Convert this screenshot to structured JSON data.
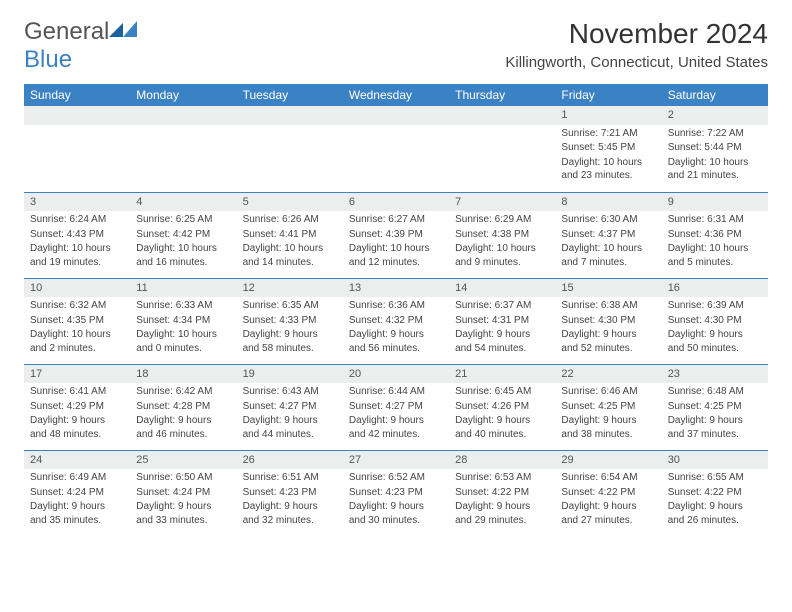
{
  "logo": {
    "general": "General",
    "blue": "Blue"
  },
  "title": "November 2024",
  "location": "Killingworth, Connecticut, United States",
  "colors": {
    "header_bg": "#3b82c4",
    "header_fg": "#ffffff",
    "daynum_bg": "#eceded",
    "border": "#3b82c4"
  },
  "weekdays": [
    "Sunday",
    "Monday",
    "Tuesday",
    "Wednesday",
    "Thursday",
    "Friday",
    "Saturday"
  ],
  "weeks": [
    [
      {
        "n": "",
        "sr": "",
        "ss": "",
        "dl": ""
      },
      {
        "n": "",
        "sr": "",
        "ss": "",
        "dl": ""
      },
      {
        "n": "",
        "sr": "",
        "ss": "",
        "dl": ""
      },
      {
        "n": "",
        "sr": "",
        "ss": "",
        "dl": ""
      },
      {
        "n": "",
        "sr": "",
        "ss": "",
        "dl": ""
      },
      {
        "n": "1",
        "sr": "Sunrise: 7:21 AM",
        "ss": "Sunset: 5:45 PM",
        "dl": "Daylight: 10 hours and 23 minutes."
      },
      {
        "n": "2",
        "sr": "Sunrise: 7:22 AM",
        "ss": "Sunset: 5:44 PM",
        "dl": "Daylight: 10 hours and 21 minutes."
      }
    ],
    [
      {
        "n": "3",
        "sr": "Sunrise: 6:24 AM",
        "ss": "Sunset: 4:43 PM",
        "dl": "Daylight: 10 hours and 19 minutes."
      },
      {
        "n": "4",
        "sr": "Sunrise: 6:25 AM",
        "ss": "Sunset: 4:42 PM",
        "dl": "Daylight: 10 hours and 16 minutes."
      },
      {
        "n": "5",
        "sr": "Sunrise: 6:26 AM",
        "ss": "Sunset: 4:41 PM",
        "dl": "Daylight: 10 hours and 14 minutes."
      },
      {
        "n": "6",
        "sr": "Sunrise: 6:27 AM",
        "ss": "Sunset: 4:39 PM",
        "dl": "Daylight: 10 hours and 12 minutes."
      },
      {
        "n": "7",
        "sr": "Sunrise: 6:29 AM",
        "ss": "Sunset: 4:38 PM",
        "dl": "Daylight: 10 hours and 9 minutes."
      },
      {
        "n": "8",
        "sr": "Sunrise: 6:30 AM",
        "ss": "Sunset: 4:37 PM",
        "dl": "Daylight: 10 hours and 7 minutes."
      },
      {
        "n": "9",
        "sr": "Sunrise: 6:31 AM",
        "ss": "Sunset: 4:36 PM",
        "dl": "Daylight: 10 hours and 5 minutes."
      }
    ],
    [
      {
        "n": "10",
        "sr": "Sunrise: 6:32 AM",
        "ss": "Sunset: 4:35 PM",
        "dl": "Daylight: 10 hours and 2 minutes."
      },
      {
        "n": "11",
        "sr": "Sunrise: 6:33 AM",
        "ss": "Sunset: 4:34 PM",
        "dl": "Daylight: 10 hours and 0 minutes."
      },
      {
        "n": "12",
        "sr": "Sunrise: 6:35 AM",
        "ss": "Sunset: 4:33 PM",
        "dl": "Daylight: 9 hours and 58 minutes."
      },
      {
        "n": "13",
        "sr": "Sunrise: 6:36 AM",
        "ss": "Sunset: 4:32 PM",
        "dl": "Daylight: 9 hours and 56 minutes."
      },
      {
        "n": "14",
        "sr": "Sunrise: 6:37 AM",
        "ss": "Sunset: 4:31 PM",
        "dl": "Daylight: 9 hours and 54 minutes."
      },
      {
        "n": "15",
        "sr": "Sunrise: 6:38 AM",
        "ss": "Sunset: 4:30 PM",
        "dl": "Daylight: 9 hours and 52 minutes."
      },
      {
        "n": "16",
        "sr": "Sunrise: 6:39 AM",
        "ss": "Sunset: 4:30 PM",
        "dl": "Daylight: 9 hours and 50 minutes."
      }
    ],
    [
      {
        "n": "17",
        "sr": "Sunrise: 6:41 AM",
        "ss": "Sunset: 4:29 PM",
        "dl": "Daylight: 9 hours and 48 minutes."
      },
      {
        "n": "18",
        "sr": "Sunrise: 6:42 AM",
        "ss": "Sunset: 4:28 PM",
        "dl": "Daylight: 9 hours and 46 minutes."
      },
      {
        "n": "19",
        "sr": "Sunrise: 6:43 AM",
        "ss": "Sunset: 4:27 PM",
        "dl": "Daylight: 9 hours and 44 minutes."
      },
      {
        "n": "20",
        "sr": "Sunrise: 6:44 AM",
        "ss": "Sunset: 4:27 PM",
        "dl": "Daylight: 9 hours and 42 minutes."
      },
      {
        "n": "21",
        "sr": "Sunrise: 6:45 AM",
        "ss": "Sunset: 4:26 PM",
        "dl": "Daylight: 9 hours and 40 minutes."
      },
      {
        "n": "22",
        "sr": "Sunrise: 6:46 AM",
        "ss": "Sunset: 4:25 PM",
        "dl": "Daylight: 9 hours and 38 minutes."
      },
      {
        "n": "23",
        "sr": "Sunrise: 6:48 AM",
        "ss": "Sunset: 4:25 PM",
        "dl": "Daylight: 9 hours and 37 minutes."
      }
    ],
    [
      {
        "n": "24",
        "sr": "Sunrise: 6:49 AM",
        "ss": "Sunset: 4:24 PM",
        "dl": "Daylight: 9 hours and 35 minutes."
      },
      {
        "n": "25",
        "sr": "Sunrise: 6:50 AM",
        "ss": "Sunset: 4:24 PM",
        "dl": "Daylight: 9 hours and 33 minutes."
      },
      {
        "n": "26",
        "sr": "Sunrise: 6:51 AM",
        "ss": "Sunset: 4:23 PM",
        "dl": "Daylight: 9 hours and 32 minutes."
      },
      {
        "n": "27",
        "sr": "Sunrise: 6:52 AM",
        "ss": "Sunset: 4:23 PM",
        "dl": "Daylight: 9 hours and 30 minutes."
      },
      {
        "n": "28",
        "sr": "Sunrise: 6:53 AM",
        "ss": "Sunset: 4:22 PM",
        "dl": "Daylight: 9 hours and 29 minutes."
      },
      {
        "n": "29",
        "sr": "Sunrise: 6:54 AM",
        "ss": "Sunset: 4:22 PM",
        "dl": "Daylight: 9 hours and 27 minutes."
      },
      {
        "n": "30",
        "sr": "Sunrise: 6:55 AM",
        "ss": "Sunset: 4:22 PM",
        "dl": "Daylight: 9 hours and 26 minutes."
      }
    ]
  ]
}
